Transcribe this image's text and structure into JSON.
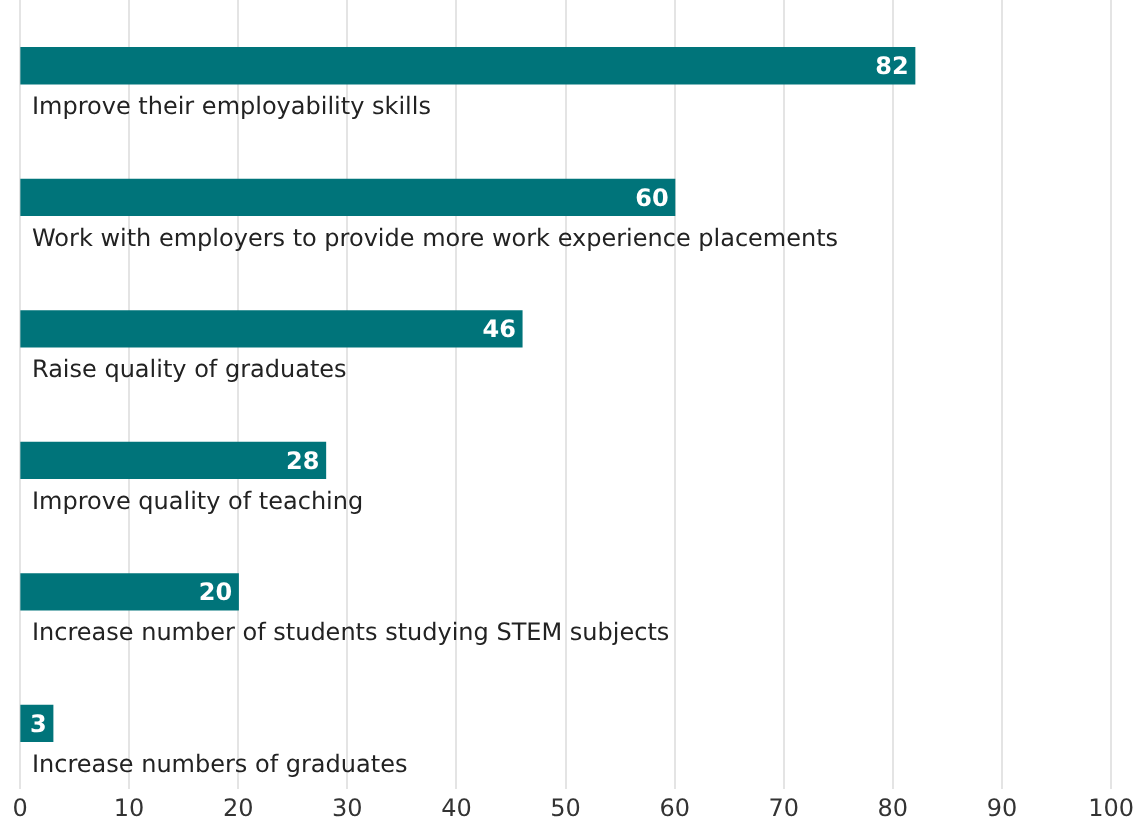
{
  "chart_data": {
    "type": "bar",
    "orientation": "horizontal",
    "categories": [
      "Improve their employability skills",
      "Work with employers to provide more work experience placements",
      "Raise quality of graduates",
      "Improve quality of teaching",
      "Increase number of students studying STEM subjects",
      "Increase numbers of graduates"
    ],
    "values": [
      82,
      60,
      46,
      28,
      20,
      3
    ],
    "color": "#00747a",
    "xlim": [
      0,
      100
    ],
    "xticks": [
      0,
      10,
      20,
      30,
      40,
      50,
      60,
      70,
      80,
      90,
      100
    ],
    "grid": "x",
    "data_labels": true
  }
}
